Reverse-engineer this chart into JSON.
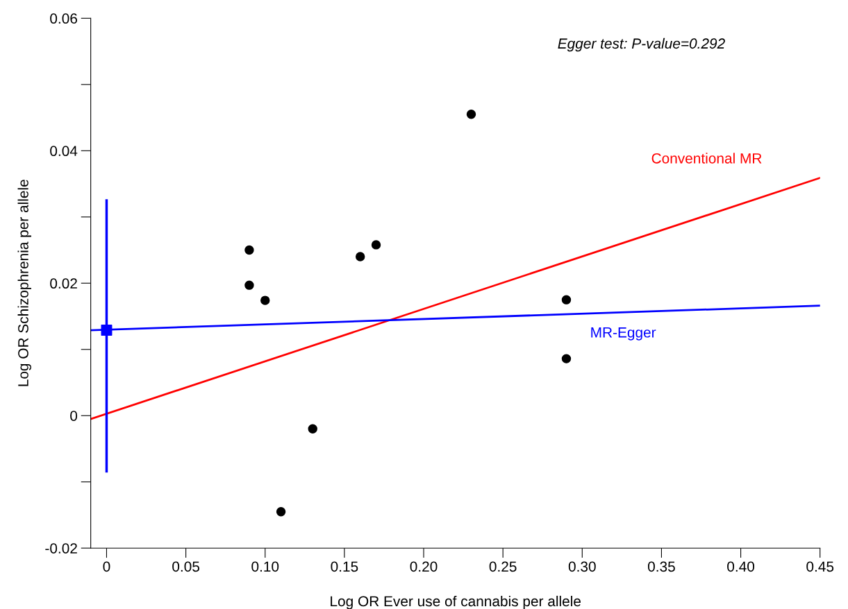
{
  "chart_data": {
    "type": "scatter",
    "xlabel": "Log OR Ever use of cannabis per allele",
    "ylabel": "Log OR Schizophrenia per allele",
    "xlim": [
      -0.01,
      0.45
    ],
    "ylim": [
      -0.02,
      0.06
    ],
    "xticks": [
      0,
      {
        "value": 0.05,
        "label": "0.05"
      },
      {
        "value": 0.1,
        "label": "0.10"
      },
      {
        "value": 0.15,
        "label": "0.15"
      },
      {
        "value": 0.2,
        "label": "0.20"
      },
      {
        "value": 0.25,
        "label": "0.25"
      },
      {
        "value": 0.3,
        "label": "0.30"
      },
      {
        "value": 0.35,
        "label": "0.35"
      },
      {
        "value": 0.4,
        "label": "0.40"
      },
      {
        "value": 0.45,
        "label": "0.45"
      }
    ],
    "yticks": [
      -0.02,
      {
        "value": -0.01,
        "label": null
      },
      0,
      {
        "value": 0.01,
        "label": null
      },
      0.02,
      {
        "value": 0.03,
        "label": null
      },
      0.04,
      {
        "value": 0.05,
        "label": null
      },
      0.06
    ],
    "grid": false,
    "legend": false,
    "annotations": [
      "Egger test: P-value=0.292"
    ],
    "series": [
      {
        "color": "#000000",
        "marker": "circle",
        "x": [
          0.09,
          0.09,
          0.1,
          0.16,
          0.17,
          0.23,
          0.29,
          0.29,
          0.13,
          0.11
        ],
        "values": [
          0.025,
          0.0197,
          0.0174,
          0.024,
          0.0258,
          0.0455,
          0.0175,
          0.0086,
          -0.002,
          -0.0145
        ]
      },
      {
        "type": "line",
        "name": "Conventional MR",
        "color": "#ff0000",
        "x": [
          -0.01,
          0.45
        ],
        "values": [
          -0.0005,
          0.0359
        ]
      },
      {
        "type": "line",
        "name": "MR-Egger",
        "color": "#0000ff",
        "x": [
          -0.01,
          0.45
        ],
        "values": [
          0.0129,
          0.0166
        ]
      },
      {
        "type": "scatter",
        "color": "#0000ff",
        "marker": "square",
        "x": [
          0
        ],
        "values": [
          0.0129
        ],
        "errors": [
          [
            -0.0084,
            0.0325
          ]
        ]
      }
    ]
  }
}
